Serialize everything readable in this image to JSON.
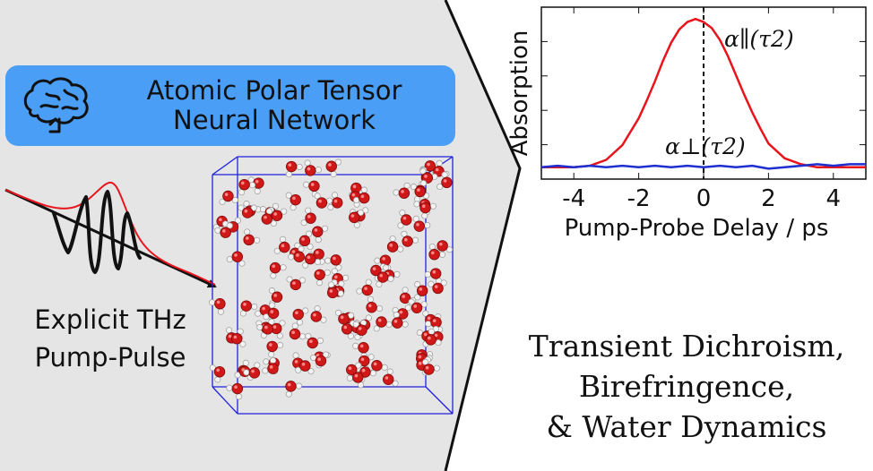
{
  "banner": {
    "label_line1": "Atomic Polar Tensor",
    "label_line2": "Neural Network"
  },
  "pulse": {
    "caption_line1": "Explicit THz",
    "caption_line2": "Pump-Pulse"
  },
  "conclusion": {
    "line1": "Transient Dichroism,",
    "line2": "Birefringence,",
    "line3": "& Water Dynamics"
  },
  "colors": {
    "left_panel": "#e5e5e5",
    "banner": "#4a9ef5",
    "parallel_series": "#e8141c",
    "perpendicular_series": "#1f2fd0",
    "simulation_box": "#2222dd",
    "oxygen": "#d01818",
    "hydrogen": "#f2f2f2"
  },
  "icons": {
    "banner_icon": "brain-head-icon"
  },
  "chart_data": {
    "type": "line",
    "xlabel": "Pump-Probe Delay / ps",
    "ylabel": "Absorption",
    "xlim": [
      -5,
      5
    ],
    "ylim": [
      -0.08,
      1.08
    ],
    "xticks": [
      -4,
      -2,
      0,
      2,
      4
    ],
    "xtick_labels": [
      "-4",
      "-2",
      "0",
      "2",
      "4"
    ],
    "yticks_labeled": false,
    "vertical_marker_x": 0,
    "series": [
      {
        "name": "α∥(τ2)",
        "x": [
          -5,
          -4.5,
          -4,
          -3.5,
          -3,
          -2.5,
          -2,
          -1.75,
          -1.5,
          -1.25,
          -1,
          -0.75,
          -0.5,
          -0.25,
          0,
          0.25,
          0.5,
          0.75,
          1,
          1.25,
          1.5,
          1.75,
          2,
          2.5,
          3,
          3.5,
          4,
          4.5,
          5
        ],
        "y": [
          0.0,
          0.0,
          0.0,
          0.01,
          0.05,
          0.15,
          0.33,
          0.45,
          0.58,
          0.72,
          0.84,
          0.93,
          0.98,
          1.0,
          0.98,
          0.94,
          0.86,
          0.75,
          0.62,
          0.49,
          0.37,
          0.26,
          0.16,
          0.06,
          0.02,
          0.0,
          0.0,
          0.0,
          0.0
        ]
      },
      {
        "name": "α⊥(τ2)",
        "x": [
          -5,
          -4.5,
          -4,
          -3.5,
          -3,
          -2.5,
          -2,
          -1.5,
          -1,
          -0.5,
          0,
          0.5,
          1,
          1.5,
          2,
          2.5,
          3,
          3.5,
          4,
          4.5,
          5
        ],
        "y": [
          0.0,
          0.01,
          0.0,
          0.01,
          0.0,
          0.01,
          0.0,
          0.01,
          0.0,
          0.01,
          0.0,
          0.01,
          0.0,
          0.01,
          -0.01,
          0.0,
          0.01,
          0.02,
          0.01,
          0.02,
          0.02
        ]
      }
    ]
  }
}
